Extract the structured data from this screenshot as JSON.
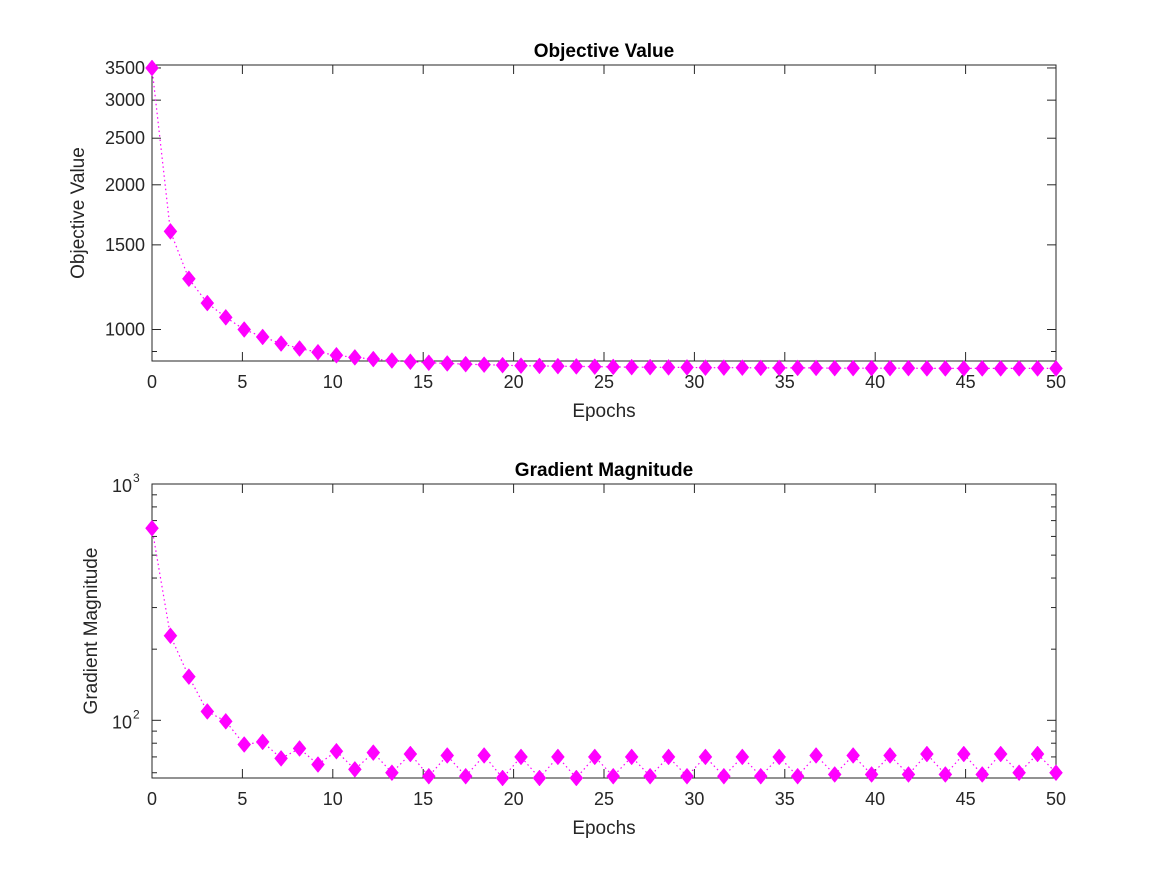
{
  "colors": {
    "series": "#ff00ff",
    "axis": "#262626"
  },
  "chart_data": [
    {
      "type": "line",
      "title": "Objective Value",
      "xlabel": "Epochs",
      "ylabel": "Objective Value",
      "y_scale": "log",
      "xlim": [
        0,
        50
      ],
      "ylim": [
        860,
        3550
      ],
      "xticks": [
        0,
        5,
        10,
        15,
        20,
        25,
        30,
        35,
        40,
        45,
        50
      ],
      "yticks": [
        1000,
        1500,
        2000,
        2500,
        3000,
        3500
      ],
      "grid": false,
      "marker": "diamond",
      "line_style": "dotted",
      "x": [
        0,
        1.02,
        2.04,
        3.06,
        4.08,
        5.1,
        6.12,
        7.14,
        8.16,
        9.18,
        10.2,
        11.22,
        12.24,
        13.27,
        14.29,
        15.31,
        16.33,
        17.35,
        18.37,
        19.39,
        20.41,
        21.43,
        22.45,
        23.47,
        24.49,
        25.51,
        26.53,
        27.55,
        28.57,
        29.59,
        30.61,
        31.63,
        32.65,
        33.67,
        34.69,
        35.71,
        36.73,
        37.76,
        38.78,
        39.8,
        40.82,
        41.84,
        42.86,
        43.88,
        44.9,
        45.92,
        46.94,
        47.96,
        48.98,
        50
      ],
      "y": [
        3500,
        1600,
        1275,
        1135,
        1060,
        1000,
        965,
        935,
        913,
        897,
        884,
        875,
        868,
        862,
        857,
        853,
        850,
        847,
        845,
        843,
        841,
        840,
        839,
        838,
        837,
        836,
        835,
        835,
        834,
        834,
        833,
        833,
        833,
        832,
        832,
        832,
        832,
        831,
        831,
        831,
        831,
        831,
        830,
        830,
        830,
        830,
        830,
        830,
        830,
        830
      ]
    },
    {
      "type": "line",
      "title": "Gradient Magnitude",
      "xlabel": "Epochs",
      "ylabel": "Gradient Magnitude",
      "y_scale": "log",
      "xlim": [
        0,
        50
      ],
      "ylim": [
        57,
        1000
      ],
      "xticks": [
        0,
        5,
        10,
        15,
        20,
        25,
        30,
        35,
        40,
        45,
        50
      ],
      "yticks": [
        {
          "base": "10",
          "exp": "2",
          "value": 100
        },
        {
          "base": "10",
          "exp": "3",
          "value": 1000
        }
      ],
      "grid": false,
      "marker": "diamond",
      "line_style": "dotted",
      "x": [
        0,
        1.02,
        2.04,
        3.06,
        4.08,
        5.1,
        6.12,
        7.14,
        8.16,
        9.18,
        10.2,
        11.22,
        12.24,
        13.27,
        14.29,
        15.31,
        16.33,
        17.35,
        18.37,
        19.39,
        20.41,
        21.43,
        22.45,
        23.47,
        24.49,
        25.51,
        26.53,
        27.55,
        28.57,
        29.59,
        30.61,
        31.63,
        32.65,
        33.67,
        34.69,
        35.71,
        36.73,
        37.76,
        38.78,
        39.8,
        40.82,
        41.84,
        42.86,
        43.88,
        44.9,
        45.92,
        46.94,
        47.96,
        48.98,
        50
      ],
      "y": [
        650,
        228,
        153,
        109,
        99,
        79,
        81,
        69,
        76,
        65,
        74,
        62,
        73,
        60,
        72,
        58,
        71,
        58,
        71,
        57,
        70,
        57,
        70,
        57,
        70,
        58,
        70,
        58,
        70,
        58,
        70,
        58,
        70,
        58,
        70,
        58,
        71,
        59,
        71,
        59,
        71,
        59,
        72,
        59,
        72,
        59,
        72,
        60,
        72,
        60
      ]
    }
  ]
}
